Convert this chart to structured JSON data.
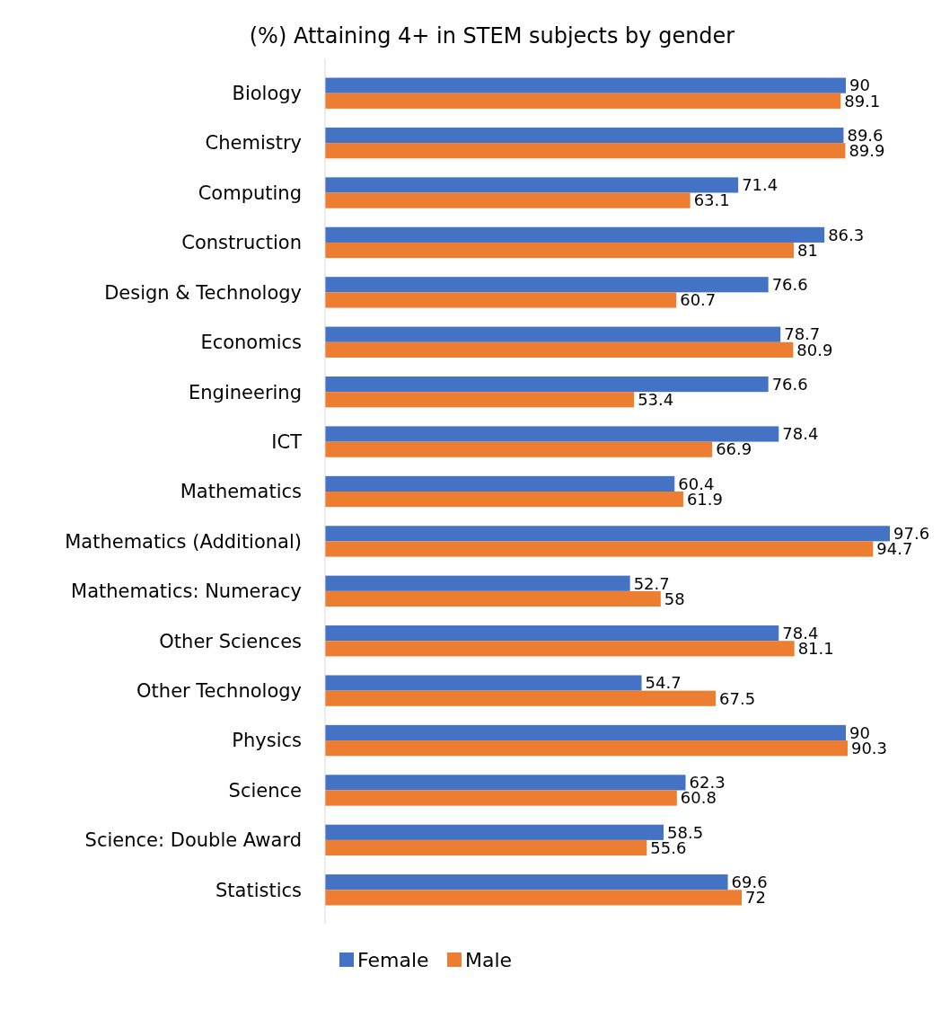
{
  "chart_data": {
    "type": "bar",
    "orientation": "horizontal",
    "title": "(%) Attaining 4+ in STEM subjects by gender",
    "categories": [
      "Biology",
      "Chemistry",
      "Computing",
      "Construction",
      "Design & Technology",
      "Economics",
      "Engineering",
      "ICT",
      "Mathematics",
      "Mathematics (Additional)",
      "Mathematics: Numeracy ",
      "Other Sciences ",
      "Other Technology ",
      "Physics",
      "Science",
      "Science: Double Award",
      "Statistics"
    ],
    "series": [
      {
        "name": "Female",
        "color": "#4472c4",
        "values": [
          90,
          89.6,
          71.4,
          86.3,
          76.6,
          78.7,
          76.6,
          78.4,
          60.4,
          97.6,
          52.7,
          78.4,
          54.7,
          90,
          62.3,
          58.5,
          69.6
        ]
      },
      {
        "name": "Male",
        "color": "#ed7d31",
        "values": [
          89.1,
          89.9,
          63.1,
          81,
          60.7,
          80.9,
          53.4,
          66.9,
          61.9,
          94.7,
          58,
          81.1,
          67.5,
          90.3,
          60.8,
          55.6,
          72
        ]
      }
    ],
    "data_labels": true,
    "legend": "bottom"
  }
}
